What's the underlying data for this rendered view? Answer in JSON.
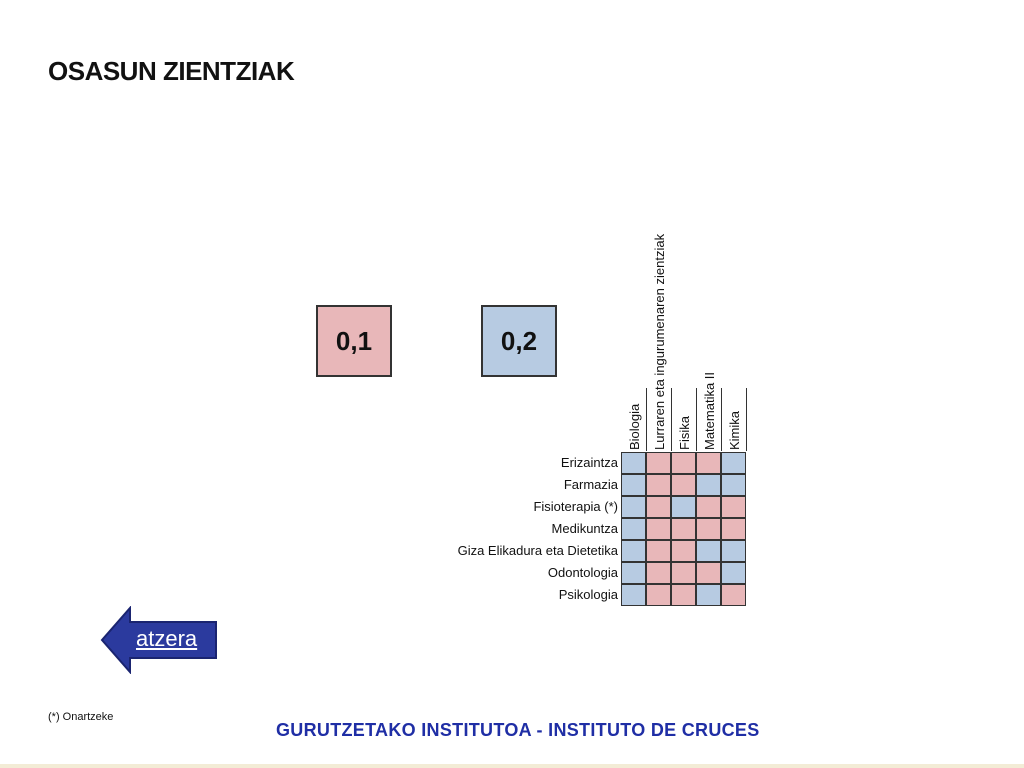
{
  "page": {
    "title": "OSASUN ZIENTZIAK",
    "footnote": "(*) Onartzeke",
    "footer": "GURUTZETAKO INSTITUTOA - INSTITUTO DE CRUCES"
  },
  "legend": {
    "items": [
      {
        "label": "0,1",
        "color": "#e8b7b9"
      },
      {
        "label": "0,2",
        "color": "#b7cbe2"
      }
    ]
  },
  "table": {
    "columns": [
      "Biologia",
      "Lurraren eta ingurumenaren zientziak",
      "Fisika",
      "Matematika II",
      "Kimika"
    ],
    "rows": [
      {
        "label": "Erizaintza",
        "values": [
          "0,2",
          "0,1",
          "0,1",
          "0,1",
          "0,2"
        ]
      },
      {
        "label": "Farmazia",
        "values": [
          "0,2",
          "0,1",
          "0,1",
          "0,2",
          "0,2"
        ]
      },
      {
        "label": "Fisioterapia (*)",
        "values": [
          "0,2",
          "0,1",
          "0,2",
          "0,1",
          "0,1"
        ]
      },
      {
        "label": "Medikuntza",
        "values": [
          "0,2",
          "0,1",
          "0,1",
          "0,1",
          "0,1"
        ]
      },
      {
        "label": "Giza Elikadura eta Dietetika",
        "values": [
          "0,2",
          "0,1",
          "0,1",
          "0,2",
          "0,2"
        ]
      },
      {
        "label": "Odontologia",
        "values": [
          "0,2",
          "0,1",
          "0,1",
          "0,1",
          "0,2"
        ]
      },
      {
        "label": "Psikologia",
        "values": [
          "0,2",
          "0,1",
          "0,1",
          "0,2",
          "0,1"
        ]
      }
    ]
  },
  "nav": {
    "back_label": "atzera",
    "arrow_color": "#2b3a9e",
    "arrow_icon": "left-arrow-icon"
  },
  "colors": {
    "footer": "#1f2ea5"
  }
}
